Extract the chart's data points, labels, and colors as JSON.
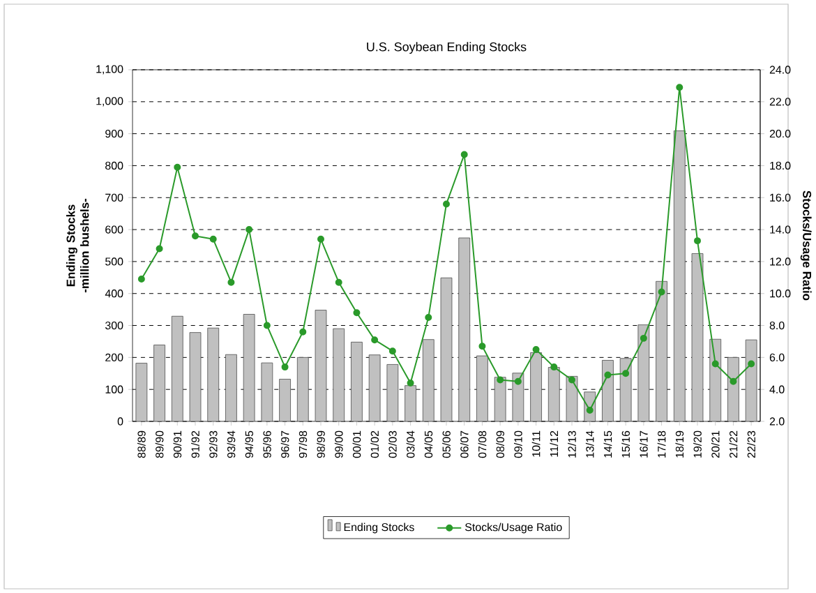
{
  "chart_data": {
    "type": "bar",
    "title": "U.S. Soybean Ending Stocks",
    "ylabel": "Ending Stocks -million bushels-",
    "y2label": "Stocks/Usage Ratio",
    "categories": [
      "88/89",
      "89/90",
      "90/91",
      "91/92",
      "92/93",
      "93/94",
      "94/95",
      "95/96",
      "96/97",
      "97/98",
      "98/99",
      "99/00",
      "00/01",
      "01/02",
      "02/03",
      "03/04",
      "04/05",
      "05/06",
      "06/07",
      "07/08",
      "08/09",
      "09/10",
      "10/11",
      "11/12",
      "12/13",
      "13/14",
      "14/15",
      "15/16",
      "16/17",
      "17/18",
      "18/19",
      "19/20",
      "20/21",
      "21/22",
      "22/23"
    ],
    "series": [
      {
        "name": "Ending Stocks",
        "color": "#c0c0c0",
        "values": [
          182,
          239,
          329,
          278,
          292,
          209,
          335,
          183,
          132,
          200,
          348,
          290,
          248,
          208,
          178,
          112,
          256,
          449,
          574,
          205,
          138,
          151,
          215,
          169,
          141,
          92,
          191,
          197,
          302,
          438,
          909,
          525,
          257,
          200,
          255
        ]
      },
      {
        "name": "Stocks/Usage Ratio",
        "type": "line",
        "axis": "y2",
        "color": "#2a9a2a",
        "marker": "circle",
        "values": [
          10.9,
          12.8,
          17.9,
          13.6,
          13.4,
          10.7,
          14.0,
          8.0,
          5.4,
          7.6,
          13.4,
          10.7,
          8.8,
          7.1,
          6.4,
          4.4,
          8.5,
          15.6,
          18.7,
          6.7,
          4.6,
          4.5,
          6.5,
          5.4,
          4.6,
          2.7,
          4.9,
          5.0,
          7.2,
          10.1,
          22.9,
          13.3,
          5.6,
          4.5,
          5.6
        ]
      }
    ],
    "ylim": [
      0,
      1100
    ],
    "yticks": [
      0,
      100,
      200,
      300,
      400,
      500,
      600,
      700,
      800,
      900,
      {
        "value": 1000,
        "label": "1,000"
      },
      {
        "value": 1100,
        "label": "1,100"
      }
    ],
    "y2lim": [
      2,
      24
    ],
    "y2ticks": [
      {
        "value": 2,
        "label": "2.0"
      },
      {
        "value": 4,
        "label": "4.0"
      },
      {
        "value": 6,
        "label": "6.0"
      },
      {
        "value": 8,
        "label": "8.0"
      },
      {
        "value": 10,
        "label": "10.0"
      },
      {
        "value": 12,
        "label": "12.0"
      },
      {
        "value": 14,
        "label": "14.0"
      },
      {
        "value": 16,
        "label": "16.0"
      },
      {
        "value": 18,
        "label": "18.0"
      },
      {
        "value": 20,
        "label": "20.0"
      },
      {
        "value": 22,
        "label": "22.0"
      },
      {
        "value": 24,
        "label": "24.0"
      }
    ],
    "grid": "y",
    "legend": "bottom"
  }
}
